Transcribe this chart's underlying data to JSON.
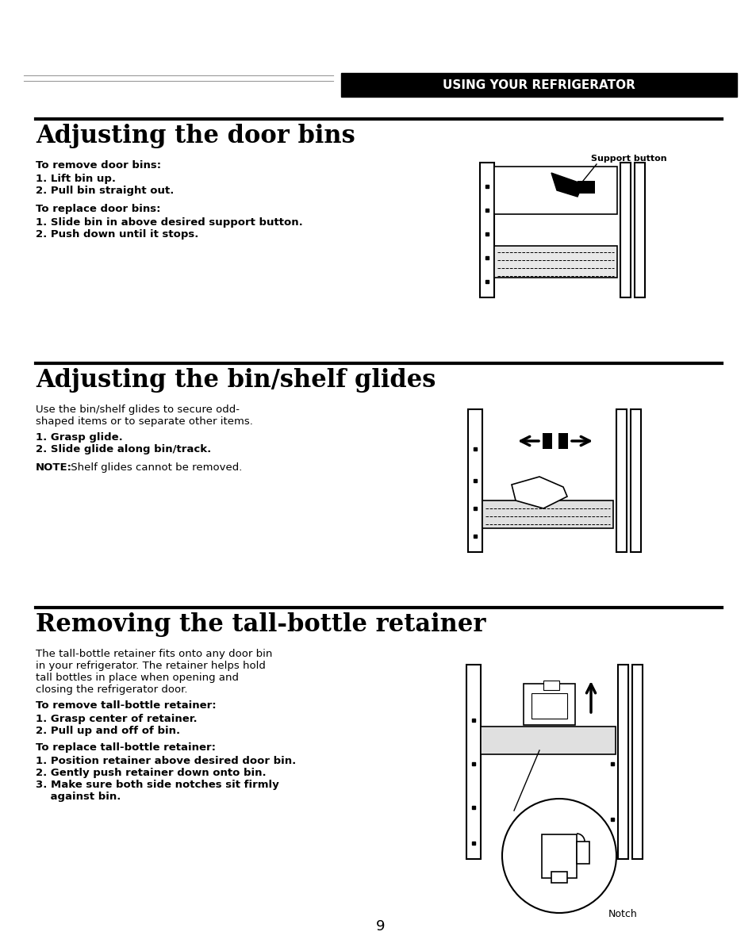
{
  "bg_color": "#ffffff",
  "header_bg": "#000000",
  "header_text": "USING YOUR REFRIGERATOR",
  "header_text_color": "#ffffff",
  "header_font_size": 11,
  "page_number": "9",
  "section1_title": "Adjusting the door bins",
  "section1_title_size": 22,
  "section1_bold1": "To remove door bins:",
  "section1_items1": [
    "1. Lift bin up.",
    "2. Pull bin straight out."
  ],
  "section1_bold2": "To replace door bins:",
  "section1_items2": [
    "1. Slide bin in above desired support button.",
    "2. Push down until it stops."
  ],
  "section1_img_label": "Support button",
  "section2_title": "Adjusting the bin/shelf glides",
  "section2_title_size": 22,
  "section2_intro": [
    "Use the bin/shelf glides to secure odd-",
    "shaped items or to separate other items."
  ],
  "section2_items": [
    "1. Grasp glide.",
    "2. Slide glide along bin/track."
  ],
  "section2_note_bold": "NOTE:",
  "section2_note_rest": " Shelf glides cannot be removed.",
  "section3_title": "Removing the tall-bottle retainer",
  "section3_title_size": 22,
  "section3_intro": [
    "The tall-bottle retainer fits onto any door bin",
    "in your refrigerator. The retainer helps hold",
    "tall bottles in place when opening and",
    "closing the refrigerator door."
  ],
  "section3_bold1": "To remove tall-bottle retainer:",
  "section3_items1": [
    "1. Grasp center of retainer.",
    "2. Pull up and off of bin."
  ],
  "section3_bold2": "To replace tall-bottle retainer:",
  "section3_items2": [
    "1. Position retainer above desired door bin.",
    "2. Gently push retainer down onto bin.",
    "3. Make sure both side notches sit firmly",
    "    against bin."
  ],
  "section3_img_label": "Notch",
  "divider_color": "#000000",
  "text_color": "#000000",
  "body_font_size": 9.5,
  "bold_font_size": 9.5,
  "note_font_size": 9.5
}
